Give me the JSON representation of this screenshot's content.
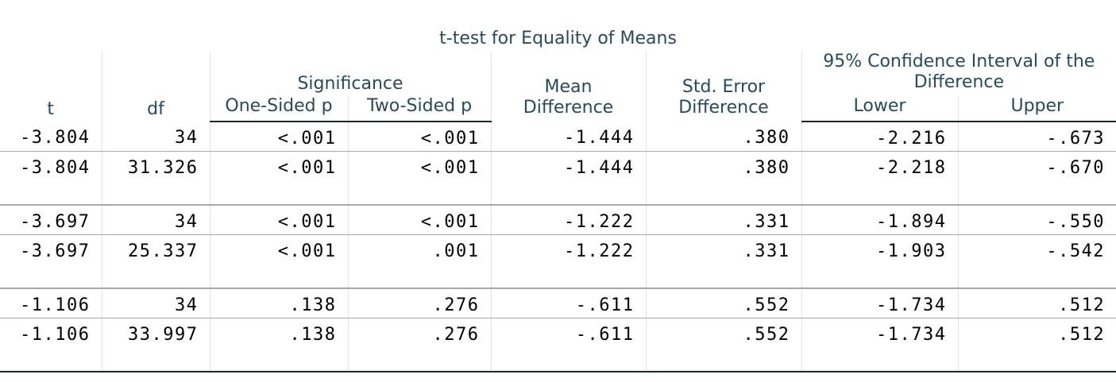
{
  "table": {
    "title": "t-test for Equality of Means",
    "headers": {
      "t": "t",
      "df": "df",
      "significance": "Significance",
      "one_sided_p": "One-Sided p",
      "two_sided_p": "Two-Sided p",
      "mean_difference": "Mean\nDifference",
      "std_error_difference": "Std. Error\nDifference",
      "confidence_interval": "95% Confidence Interval of the\nDifference",
      "lower": "Lower",
      "upper": "Upper"
    },
    "rows": [
      {
        "t": "-3.804",
        "df": "34",
        "one_sided_p": "<.001",
        "two_sided_p": "<.001",
        "mean_difference": "-1.444",
        "std_error_difference": ".380",
        "lower": "-2.216",
        "upper": "-.673"
      },
      {
        "t": "-3.804",
        "df": "31.326",
        "one_sided_p": "<.001",
        "two_sided_p": "<.001",
        "mean_difference": "-1.444",
        "std_error_difference": ".380",
        "lower": "-2.218",
        "upper": "-.670"
      },
      {
        "t": "-3.697",
        "df": "34",
        "one_sided_p": "<.001",
        "two_sided_p": "<.001",
        "mean_difference": "-1.222",
        "std_error_difference": ".331",
        "lower": "-1.894",
        "upper": "-.550"
      },
      {
        "t": "-3.697",
        "df": "25.337",
        "one_sided_p": "<.001",
        "two_sided_p": ".001",
        "mean_difference": "-1.222",
        "std_error_difference": ".331",
        "lower": "-1.903",
        "upper": "-.542"
      },
      {
        "t": "-1.106",
        "df": "34",
        "one_sided_p": ".138",
        "two_sided_p": ".276",
        "mean_difference": "-.611",
        "std_error_difference": ".552",
        "lower": "-1.734",
        "upper": ".512"
      },
      {
        "t": "-1.106",
        "df": "33.997",
        "one_sided_p": ".138",
        "two_sided_p": ".276",
        "mean_difference": "-.611",
        "std_error_difference": ".552",
        "lower": "-1.734",
        "upper": ".512"
      }
    ]
  },
  "colors": {
    "header_text": "#264a60",
    "cell_text": "#000000",
    "rule_dark": "#152935",
    "rule_light": "#a9a9a9"
  }
}
